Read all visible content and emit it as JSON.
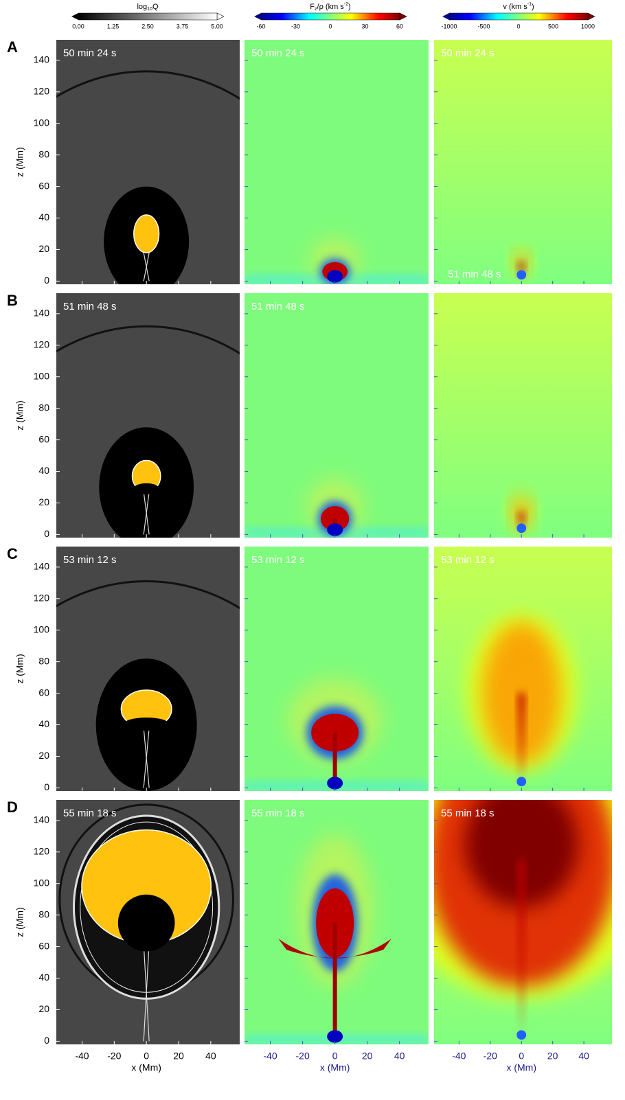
{
  "colorbars": [
    {
      "title": [
        "log",
        "10",
        "Q"
      ],
      "ticks": [
        "0.00",
        "1.25",
        "2.50",
        "3.75",
        "5.00"
      ]
    },
    {
      "title": [
        "F",
        "z",
        "/ρ (km s",
        "-2",
        ")"
      ],
      "ticks": [
        "-60",
        "-30",
        "0",
        "30",
        "60"
      ]
    },
    {
      "title": [
        "v (km s",
        "-1",
        ")"
      ],
      "ticks": [
        "-1000",
        "-500",
        "0",
        "500",
        "1000"
      ]
    }
  ],
  "rows": [
    {
      "letter": "A",
      "times": [
        "50 min 24 s",
        "50 min 24 s",
        "50 min 24 s"
      ],
      "bottom_label": "51 min 48 s"
    },
    {
      "letter": "B",
      "times": [
        "51 min 48 s",
        "51 min 48 s",
        null
      ]
    },
    {
      "letter": "C",
      "times": [
        "53 min 12 s",
        "53 min 12 s",
        "53 min 12 s"
      ]
    },
    {
      "letter": "D",
      "times": [
        "55 min 18 s",
        "55 min 18 s",
        "55 min 18 s"
      ]
    }
  ],
  "axes": {
    "z_label": "z (Mm)",
    "x_label": "x (Mm)",
    "z_ticks": [
      0,
      20,
      40,
      60,
      80,
      100,
      120,
      140
    ],
    "x_ticks": [
      -40,
      -20,
      0,
      20,
      40
    ],
    "zlim": [
      -2,
      153
    ],
    "xlim": [
      -56,
      58
    ]
  }
}
